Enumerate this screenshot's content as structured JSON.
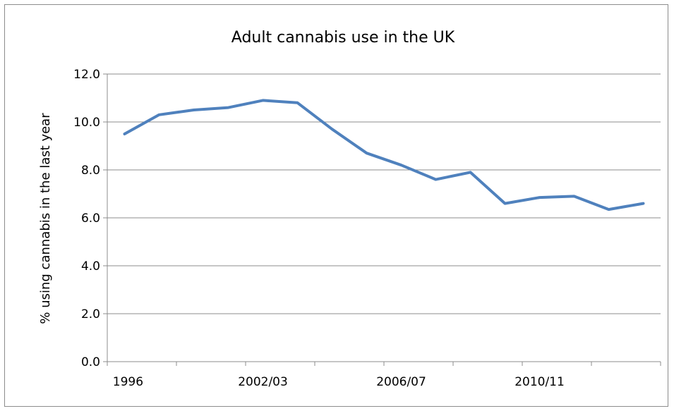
{
  "chart_data": {
    "type": "line",
    "title": "Adult cannabis use in the UK",
    "xlabel": "",
    "ylabel": "% using cannabis in the last year",
    "ylim": [
      0,
      12
    ],
    "y_ticks": [
      "0.0",
      "2.0",
      "4.0",
      "6.0",
      "8.0",
      "10.0",
      "12.0"
    ],
    "x_tick_labels": [
      "1996",
      "2002/03",
      "2006/07",
      "2010/11"
    ],
    "x_label_positions": [
      0,
      4.5,
      8.5,
      12.5
    ],
    "grid": "horizontal",
    "legend": "none",
    "series": [
      {
        "color": "#4f81bd",
        "x": [
          0,
          1,
          2,
          3,
          4,
          5,
          6,
          7,
          8,
          9,
          10,
          11,
          12,
          13,
          14,
          15,
          16
        ],
        "values": [
          9.5,
          10.3,
          10.5,
          10.6,
          10.9,
          10.8,
          9.7,
          8.7,
          8.2,
          7.6,
          7.9,
          6.6,
          6.85,
          6.9,
          6.35,
          6.6,
          null
        ]
      }
    ],
    "colors": {
      "line": "#4f81bd",
      "grid": "#8c8c8c",
      "axis": "#8c8c8c"
    }
  }
}
